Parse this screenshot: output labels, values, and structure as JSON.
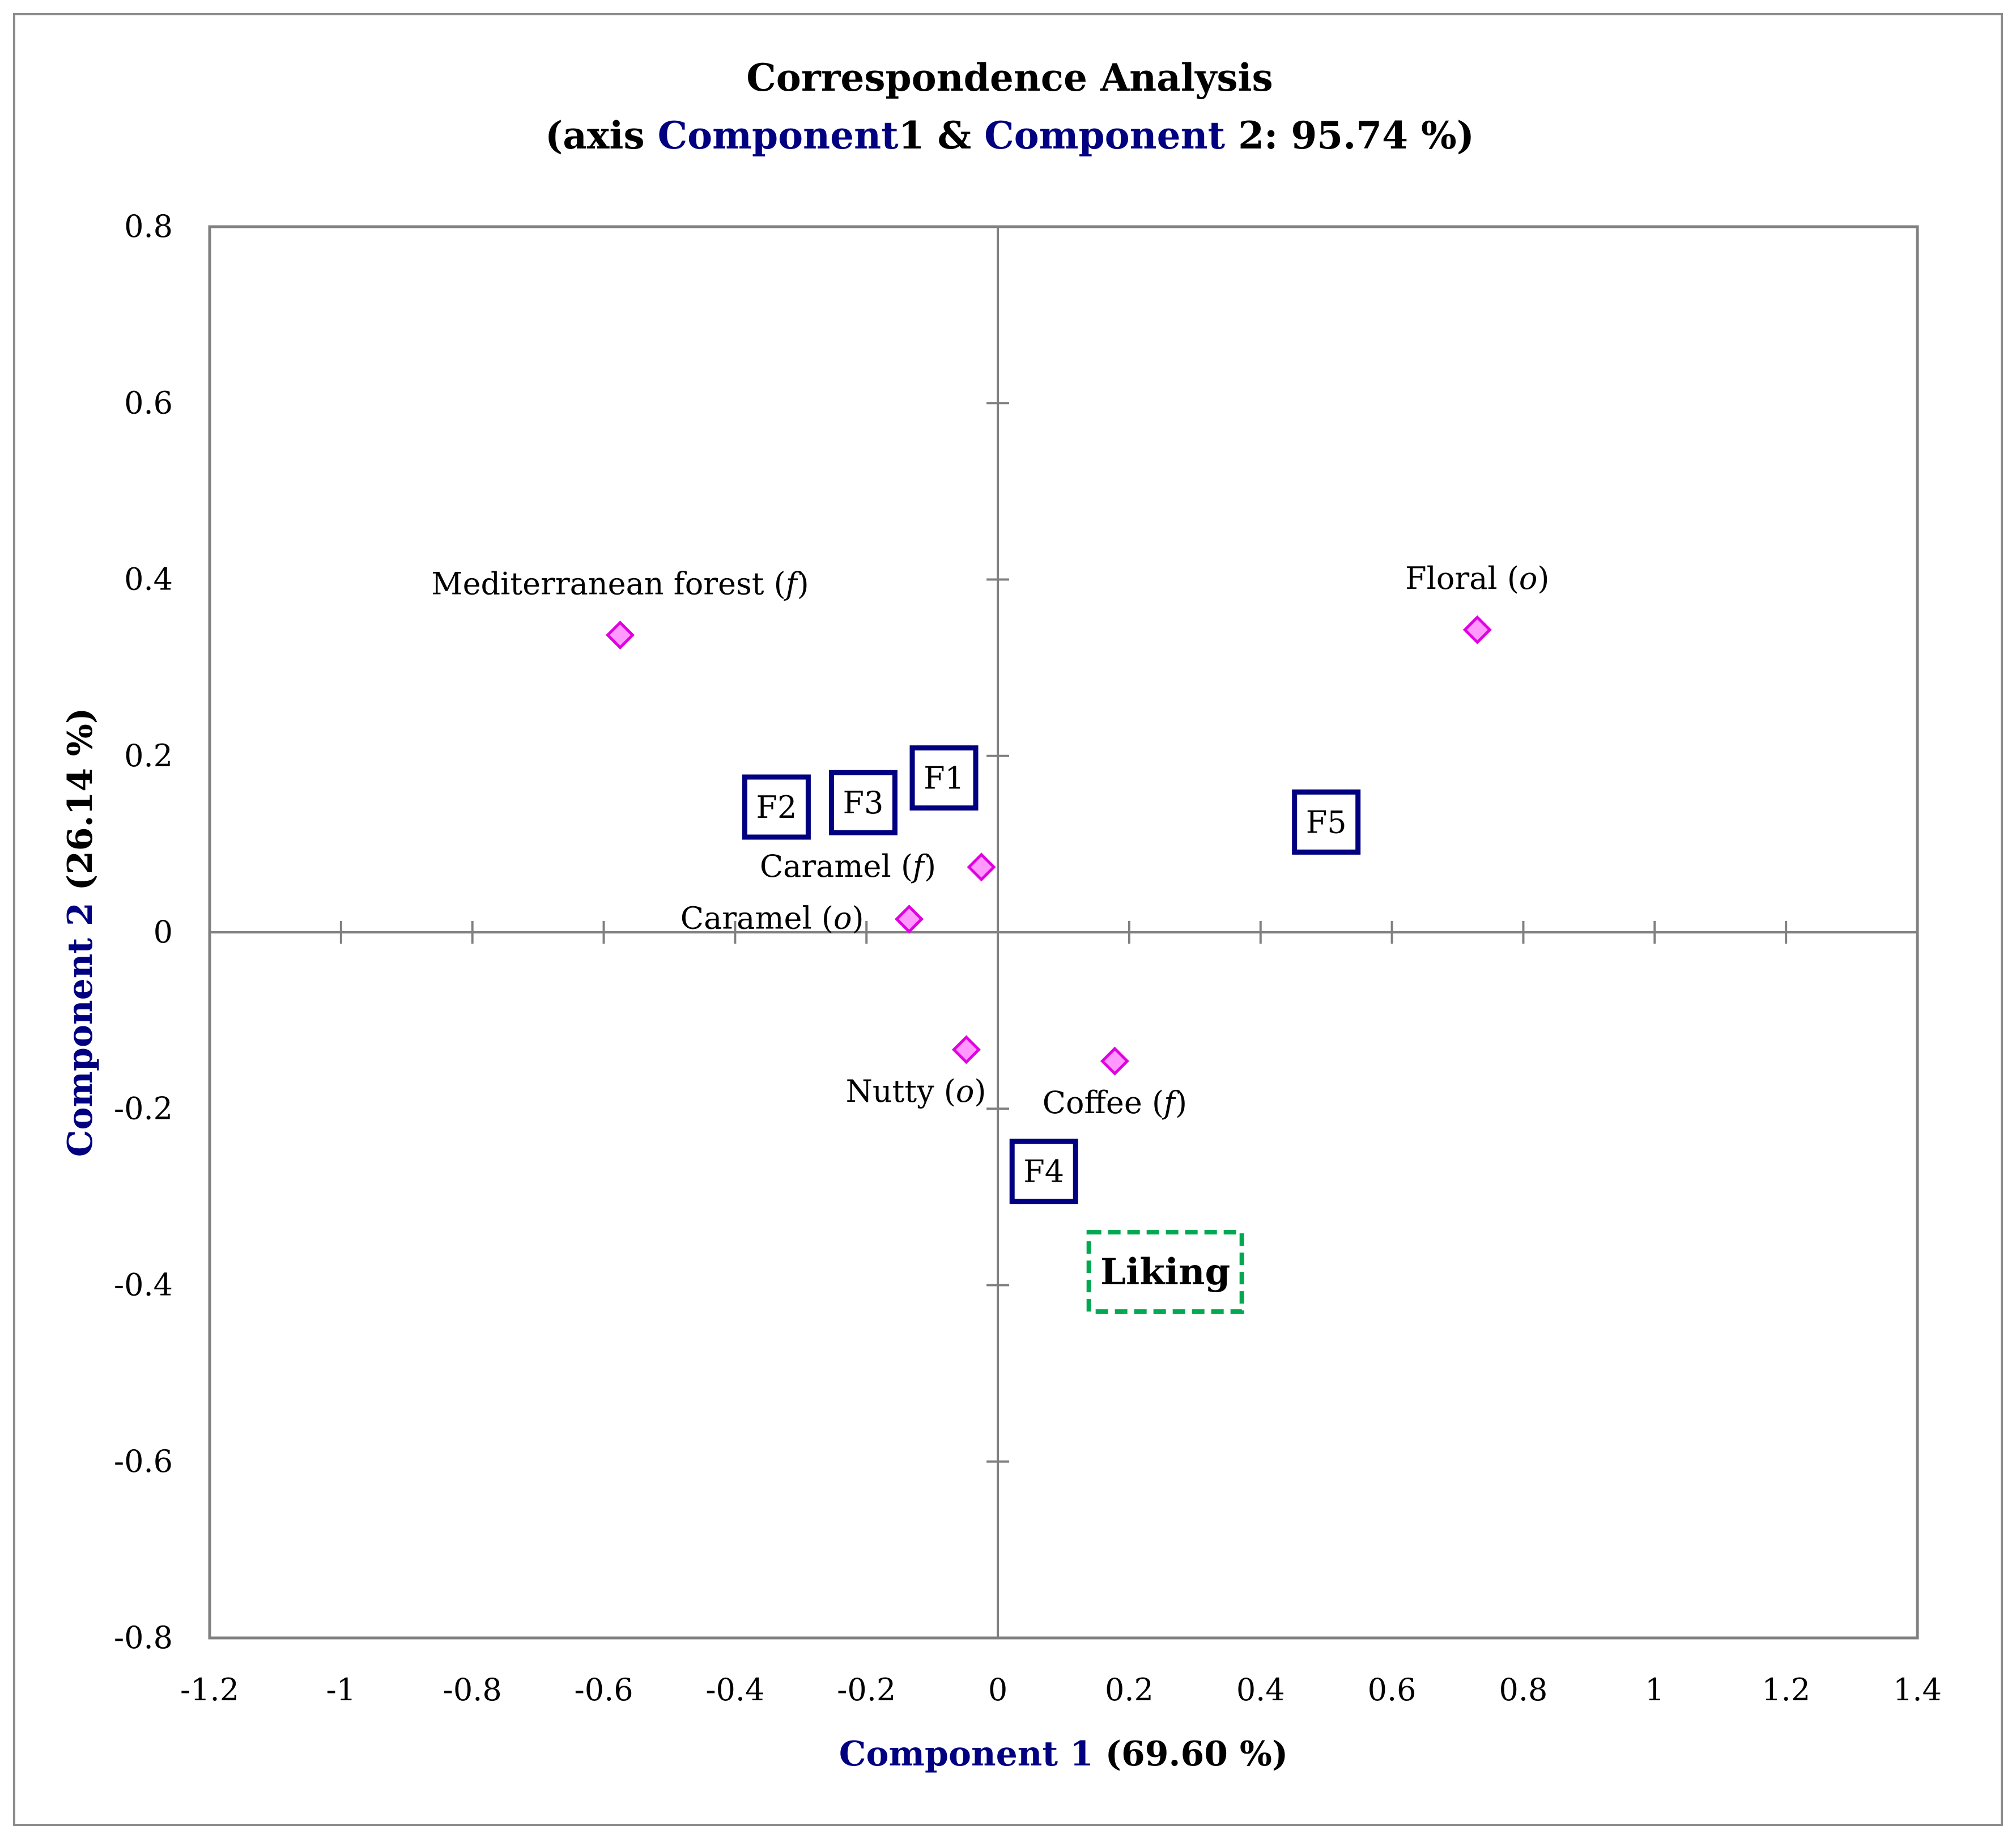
{
  "chart_data": {
    "type": "scatter",
    "title": {
      "line1": "Correspondence Analysis",
      "line2_prefix": "(axis ",
      "line2_comp1_word": "Component",
      "line2_comp1_num": "1 & ",
      "line2_comp2_word": "Component",
      "line2_suffix": " 2: 95.74 %)"
    },
    "xlabel": {
      "name": "Component 1",
      "pct": " (69.60 %)"
    },
    "ylabel": {
      "name": "Component 2",
      "pct": " (26.14 %)"
    },
    "xlim": [
      -1.2,
      1.4
    ],
    "ylim": [
      -0.8,
      0.8
    ],
    "xticks": [
      -1.2,
      -1,
      -0.8,
      -0.6,
      -0.4,
      -0.2,
      0,
      0.2,
      0.4,
      0.6,
      0.8,
      1,
      1.2,
      1.4
    ],
    "yticks": [
      0.8,
      0.6,
      0.4,
      0.2,
      0,
      -0.2,
      -0.4,
      -0.6,
      -0.8
    ],
    "xtick_labels": [
      "-1.2",
      "-1",
      "-0.8",
      "-0.6",
      "-0.4",
      "-0.2",
      "0",
      "0.2",
      "0.4",
      "0.6",
      "0.8",
      "1",
      "1.2",
      "1.4"
    ],
    "ytick_labels": [
      "0.8",
      "0.6",
      "0.4",
      "0.2",
      "0",
      "-0.2",
      "-0.4",
      "-0.6",
      "-0.8"
    ],
    "attributes": [
      {
        "name": "Mediterranean forest",
        "suffix": "f",
        "x": -0.575,
        "y": 0.337,
        "label_anchor": "above"
      },
      {
        "name": "Floral",
        "suffix": "o",
        "x": 0.73,
        "y": 0.343,
        "label_anchor": "above"
      },
      {
        "name": "Caramel",
        "suffix": "f",
        "x": -0.025,
        "y": 0.074,
        "label_anchor": "left"
      },
      {
        "name": "Caramel",
        "suffix": "o",
        "x": -0.135,
        "y": 0.015,
        "label_anchor": "left"
      },
      {
        "name": "Nutty",
        "suffix": "o",
        "x": -0.048,
        "y": -0.133,
        "label_anchor": "below-left"
      },
      {
        "name": "Coffee",
        "suffix": "f",
        "x": 0.178,
        "y": -0.146,
        "label_anchor": "below"
      }
    ],
    "samples": [
      {
        "name": "F1",
        "x": -0.082,
        "y": 0.175
      },
      {
        "name": "F2",
        "x": -0.337,
        "y": 0.142
      },
      {
        "name": "F3",
        "x": -0.205,
        "y": 0.147
      },
      {
        "name": "F4",
        "x": 0.07,
        "y": -0.271
      },
      {
        "name": "F5",
        "x": 0.5,
        "y": 0.125
      }
    ],
    "supplementary": {
      "name": "Liking",
      "x": 0.255,
      "y": -0.385
    },
    "colors": {
      "axis_blue": "#000080",
      "sample_border": "#000080",
      "attribute_fill": "#ff99ff",
      "attribute_stroke": "#e000e0",
      "liking_border": "#00a84f",
      "axis_line": "#808080"
    }
  }
}
